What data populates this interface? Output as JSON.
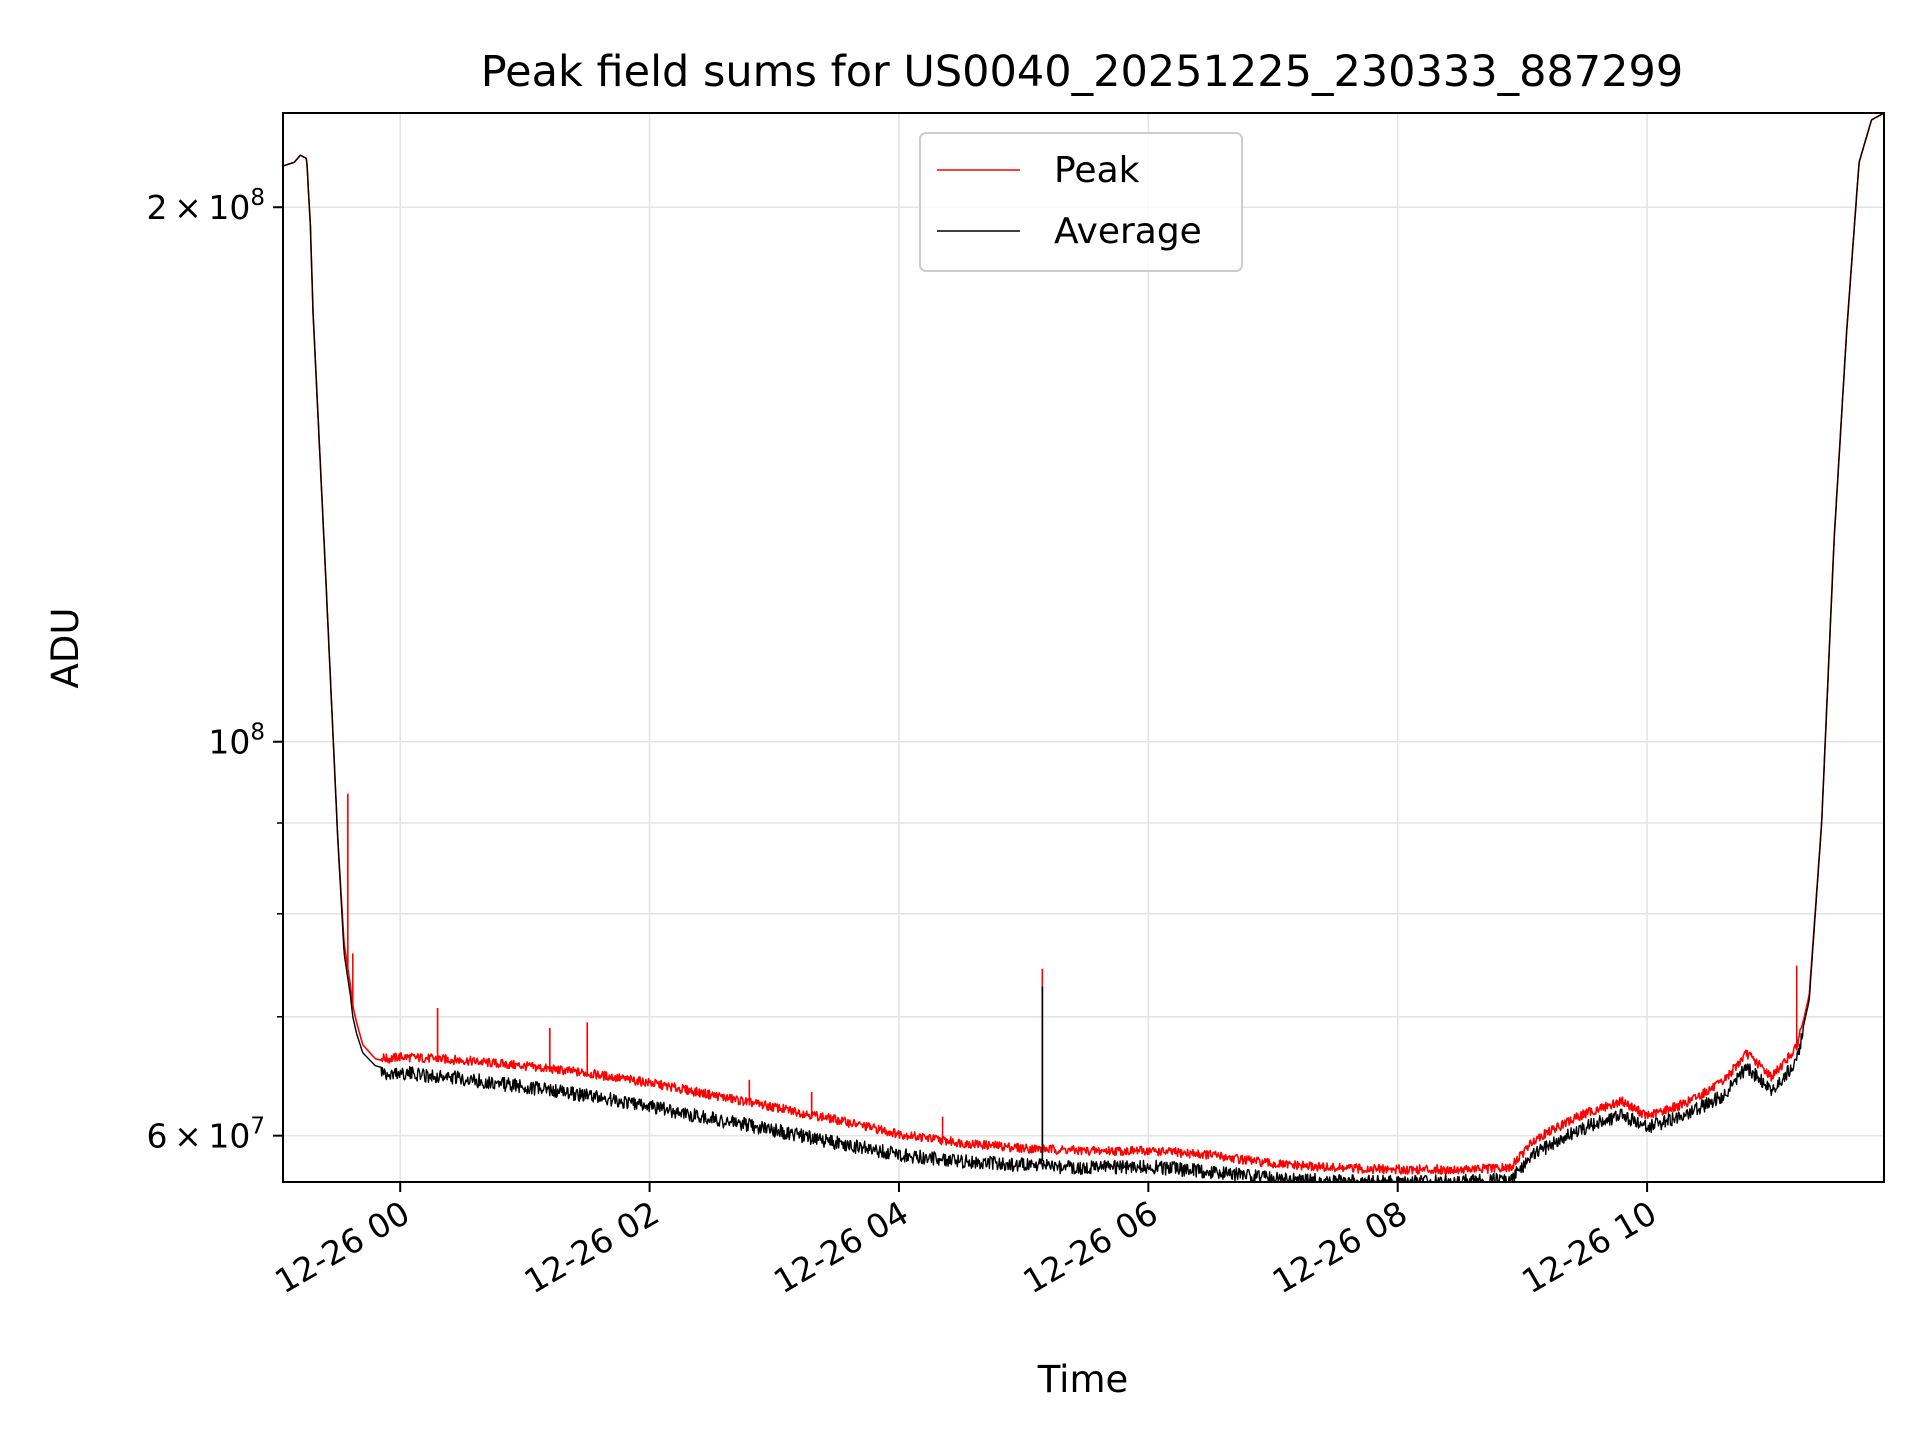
{
  "chart_data": {
    "type": "line",
    "title": "Peak field sums for US0040_20251225_230333_887299",
    "xlabel": "Time",
    "ylabel": "ADU",
    "yscale": "log",
    "grid": true,
    "legend_position": "top-center",
    "x_unit": "hours since 2025-12-26 00:00",
    "xlim": [
      -0.94,
      11.9
    ],
    "ylim": [
      56500000,
      226000000
    ],
    "x_ticks": [
      {
        "value": 0,
        "label": "12-26 00"
      },
      {
        "value": 2,
        "label": "12-26 02"
      },
      {
        "value": 4,
        "label": "12-26 04"
      },
      {
        "value": 6,
        "label": "12-26 06"
      },
      {
        "value": 8,
        "label": "12-26 08"
      },
      {
        "value": 10,
        "label": "12-26 10"
      }
    ],
    "y_major_ticks": [
      {
        "value": 60000000,
        "mantissa": "6",
        "exponent": "7"
      },
      {
        "value": 100000000,
        "mantissa": "",
        "exponent": "8"
      },
      {
        "value": 200000000,
        "mantissa": "2",
        "exponent": "8"
      }
    ],
    "y_minor_ticks": [
      70000000,
      80000000,
      90000000
    ],
    "series": [
      {
        "name": "Peak",
        "color": "#ff0000",
        "x": [
          -0.94,
          -0.85,
          -0.8,
          -0.75,
          -0.72,
          -0.7,
          -0.6,
          -0.5,
          -0.45,
          -0.4,
          -0.38,
          -0.35,
          -0.3,
          -0.2,
          -0.1,
          0.0,
          0.5,
          1.0,
          1.5,
          2.0,
          2.5,
          3.0,
          3.5,
          4.0,
          4.5,
          5.0,
          5.5,
          6.0,
          6.5,
          7.0,
          7.5,
          8.0,
          8.5,
          8.9,
          9.1,
          9.3,
          9.5,
          9.8,
          10.0,
          10.3,
          10.6,
          10.8,
          11.0,
          11.2,
          11.3,
          11.4,
          11.5,
          11.6,
          11.7,
          11.8,
          11.9
        ],
        "values": [
          211000000,
          212000000,
          214000000,
          213000000,
          195000000,
          175000000,
          125000000,
          88000000,
          77000000,
          73000000,
          71000000,
          69500000,
          67500000,
          66300000,
          66000000,
          66200000,
          65900000,
          65400000,
          64800000,
          64000000,
          63000000,
          62000000,
          61000000,
          59900000,
          59200000,
          58800000,
          58600000,
          58600000,
          58300000,
          57600000,
          57300000,
          57200000,
          57200000,
          57300000,
          59500000,
          60500000,
          61500000,
          62500000,
          61300000,
          62300000,
          64000000,
          66500000,
          64500000,
          67000000,
          72000000,
          90000000,
          130000000,
          170000000,
          212000000,
          224000000,
          226000000
        ],
        "spikes": [
          {
            "x": -0.42,
            "value": 93500000
          },
          {
            "x": -0.38,
            "value": 76000000
          },
          {
            "x": 0.3,
            "value": 70800000
          },
          {
            "x": 1.2,
            "value": 69000000
          },
          {
            "x": 1.5,
            "value": 69500000
          },
          {
            "x": 2.8,
            "value": 64500000
          },
          {
            "x": 3.3,
            "value": 63500000
          },
          {
            "x": 4.35,
            "value": 61500000
          },
          {
            "x": 5.15,
            "value": 74500000
          },
          {
            "x": 11.2,
            "value": 74800000
          }
        ]
      },
      {
        "name": "Average",
        "color": "#000000",
        "x": [
          -0.94,
          -0.85,
          -0.8,
          -0.75,
          -0.72,
          -0.7,
          -0.6,
          -0.5,
          -0.45,
          -0.4,
          -0.38,
          -0.35,
          -0.3,
          -0.2,
          -0.1,
          0.0,
          0.5,
          1.0,
          1.5,
          2.0,
          2.5,
          3.0,
          3.5,
          4.0,
          4.5,
          5.0,
          5.5,
          6.0,
          6.5,
          7.0,
          7.5,
          8.0,
          8.5,
          8.9,
          9.1,
          9.3,
          9.5,
          9.8,
          10.0,
          10.3,
          10.6,
          10.8,
          11.0,
          11.2,
          11.3,
          11.4,
          11.5,
          11.6,
          11.7,
          11.8,
          11.9
        ],
        "values": [
          211000000,
          212000000,
          214000000,
          213000000,
          195000000,
          175000000,
          125000000,
          88000000,
          76000000,
          72000000,
          70000000,
          68500000,
          66800000,
          65700000,
          65400000,
          65500000,
          65000000,
          64300000,
          63600000,
          62700000,
          61700000,
          60800000,
          59800000,
          58900000,
          58400000,
          58100000,
          57900000,
          58000000,
          57600000,
          57100000,
          56900000,
          56800000,
          56900000,
          57000000,
          59000000,
          60000000,
          61000000,
          62000000,
          61000000,
          62000000,
          63500000,
          66000000,
          64000000,
          66500000,
          71500000,
          90000000,
          130000000,
          170000000,
          212000000,
          224000000,
          226000000
        ],
        "spikes": [
          {
            "x": 5.15,
            "value": 72800000
          }
        ]
      }
    ]
  }
}
